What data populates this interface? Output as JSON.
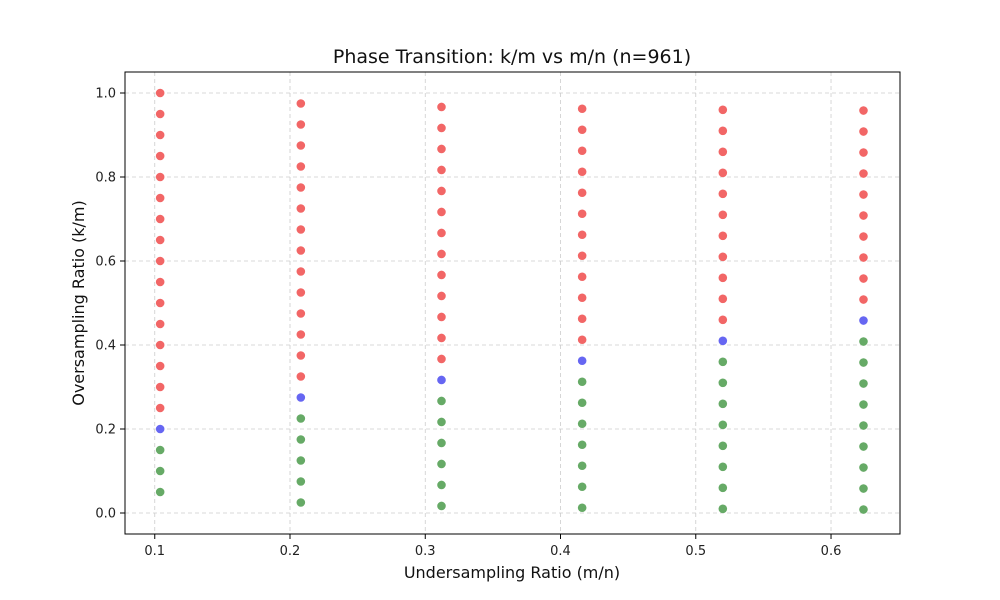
{
  "chart_data": {
    "type": "scatter",
    "title": "Phase Transition: k/m vs m/n (n=961)",
    "xlabel": "Undersampling Ratio (m/n)",
    "ylabel": "Oversampling Ratio (k/m)",
    "xlim": [
      0.078,
      0.651
    ],
    "ylim": [
      -0.05,
      1.05
    ],
    "x_ticks": [
      "0.1",
      "0.2",
      "0.3",
      "0.4",
      "0.5",
      "0.6"
    ],
    "y_ticks": [
      "0.0",
      "0.2",
      "0.4",
      "0.6",
      "0.8",
      "1.0"
    ],
    "grid": true,
    "colors": {
      "red": "#f26666",
      "blue": "#6666f2",
      "green": "#66aa66"
    },
    "columns": [
      {
        "x": 0.104,
        "y_start": 0.05,
        "step": 0.05,
        "count": 20,
        "blue_index": 3
      },
      {
        "x": 0.208,
        "y_start": 0.025,
        "step": 0.05,
        "count": 20,
        "blue_index": 5
      },
      {
        "x": 0.312,
        "y_start": 0.0167,
        "step": 0.05,
        "count": 20,
        "blue_index": 6
      },
      {
        "x": 0.416,
        "y_start": 0.0125,
        "step": 0.05,
        "count": 20,
        "blue_index": 7
      },
      {
        "x": 0.52,
        "y_start": 0.01,
        "step": 0.05,
        "count": 20,
        "blue_index": 8
      },
      {
        "x": 0.624,
        "y_start": 0.0083,
        "step": 0.05,
        "count": 20,
        "blue_index": 9
      }
    ]
  }
}
